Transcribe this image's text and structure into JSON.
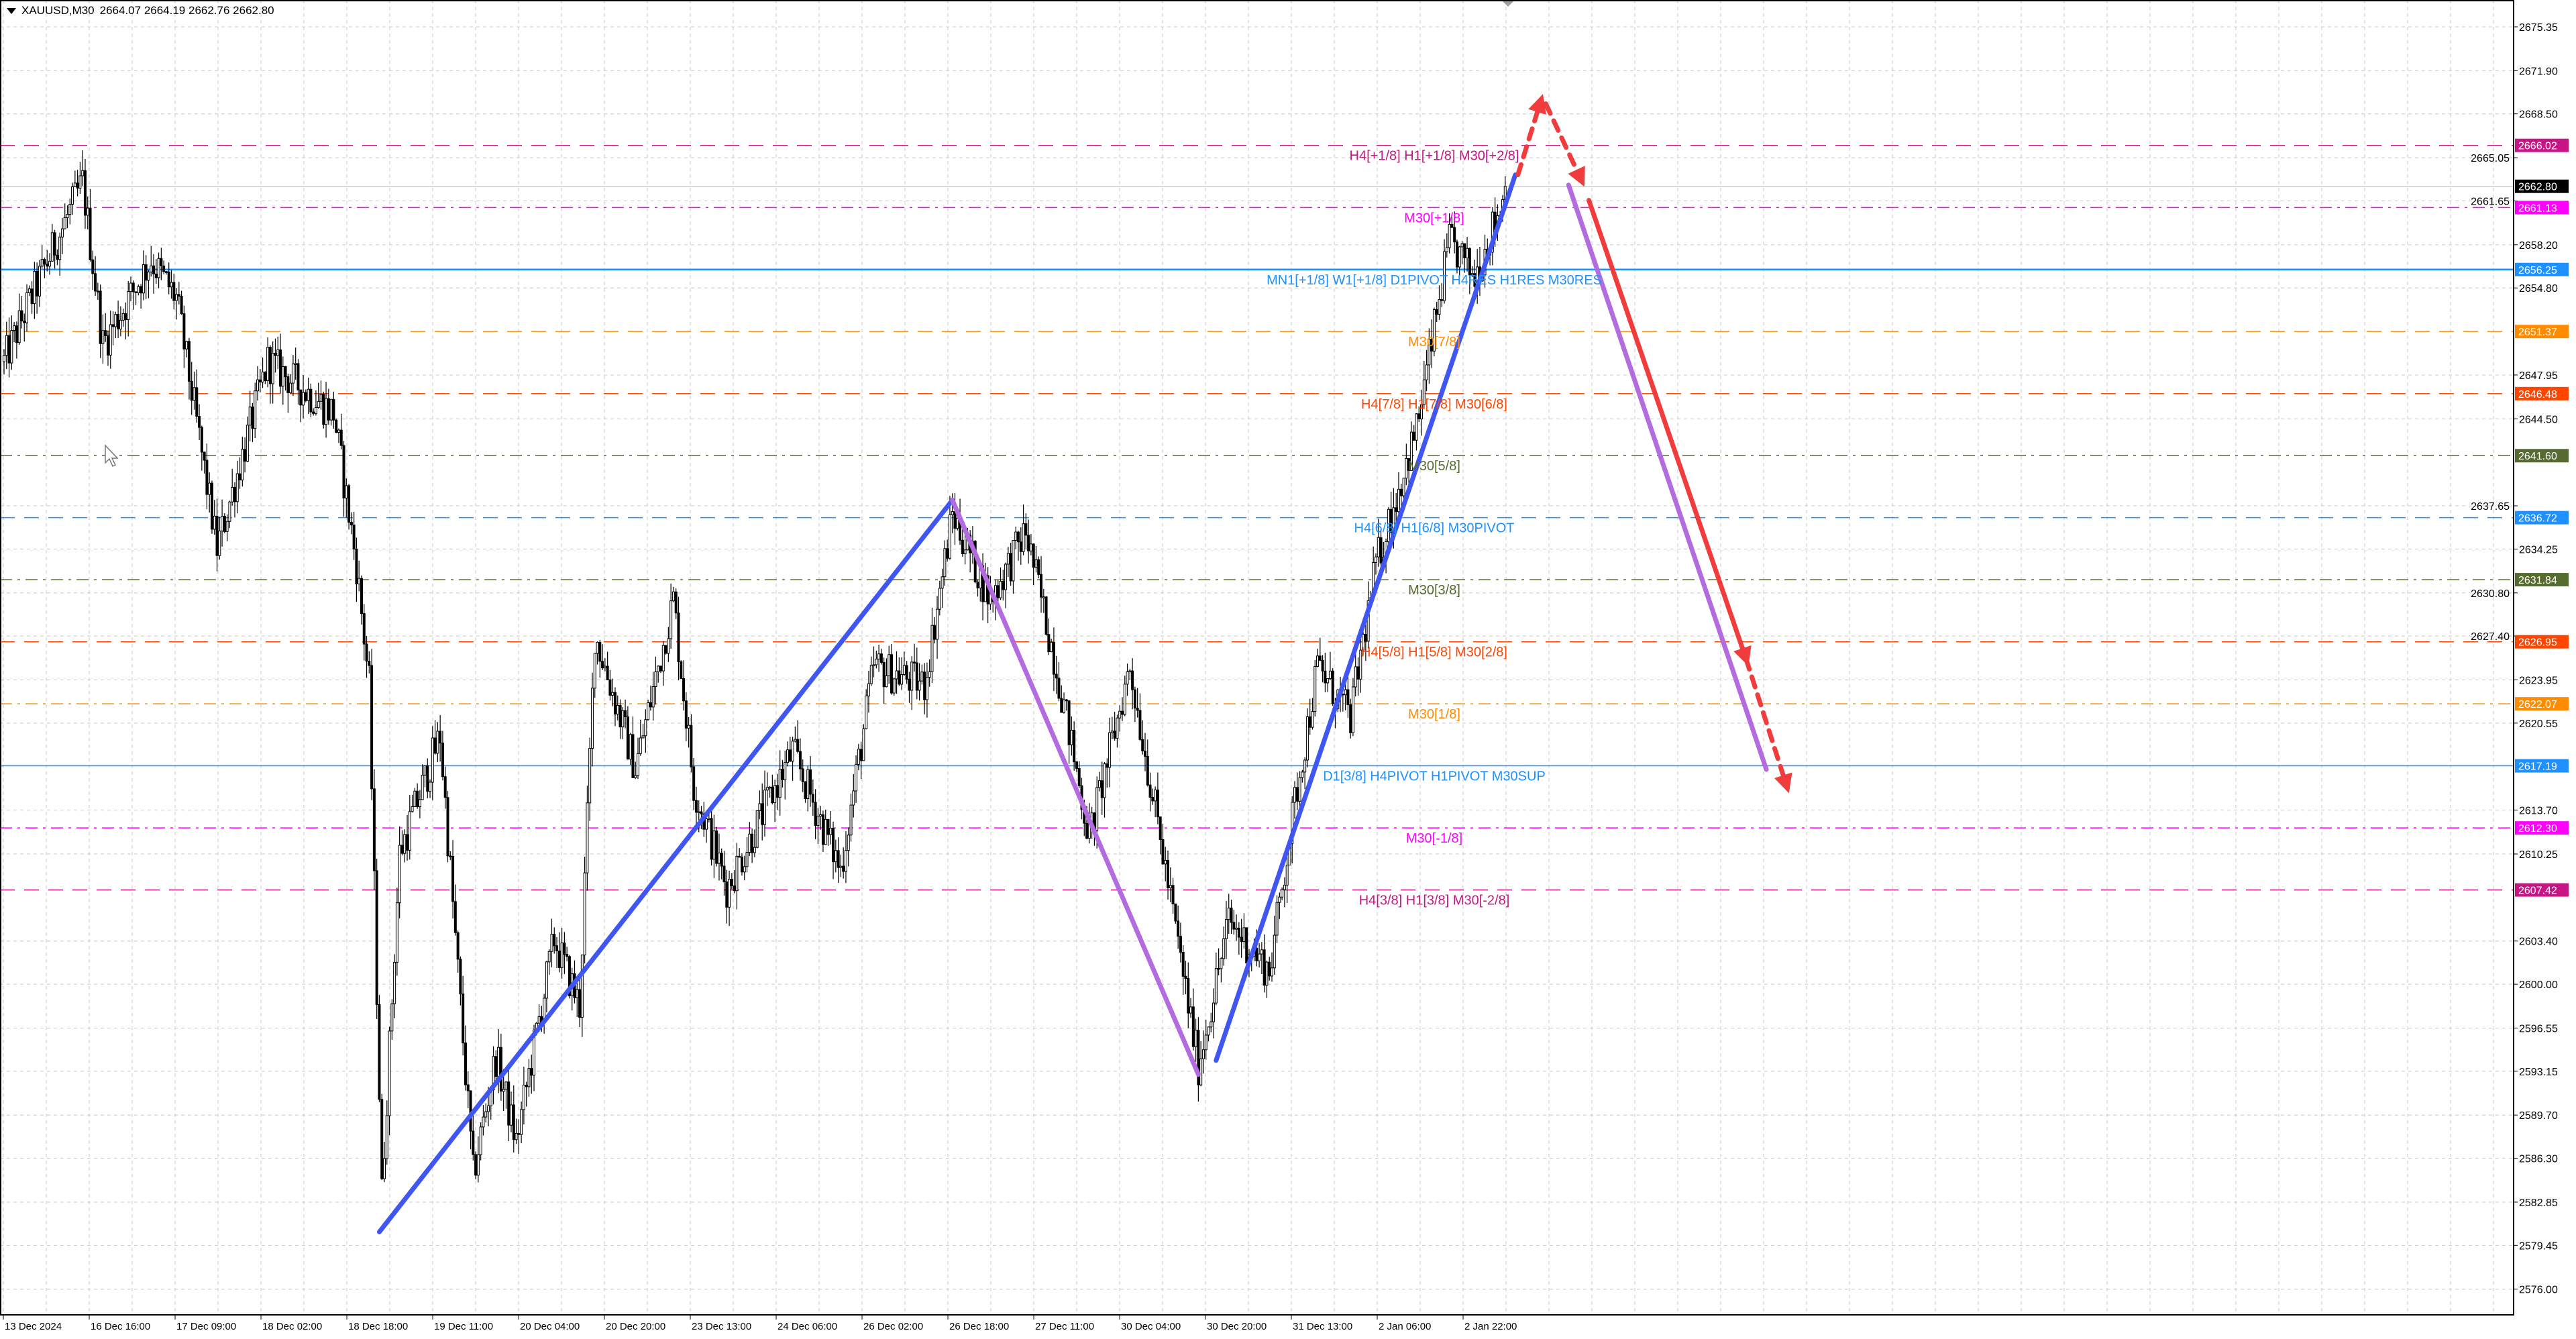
{
  "header": {
    "symbol": "XAUUSD,M30",
    "ohlc": "2664.07 2664.19 2662.76 2662.80"
  },
  "chart_data": {
    "type": "candlestick",
    "symbol": "XAUUSD",
    "timeframe": "M30",
    "last_bar": {
      "open": 2664.07,
      "high": 2664.19,
      "low": 2662.76,
      "close": 2662.8
    },
    "ylim": [
      2574.03,
      2677.46
    ],
    "grid": true,
    "y_ticks": [
      "2675.35",
      "2671.90",
      "2668.50",
      "2665.05",
      "2661.65",
      "2658.20",
      "2654.80",
      "2647.95",
      "2644.50",
      "2637.65",
      "2634.25",
      "2630.80",
      "2627.40",
      "2623.95",
      "2620.55",
      "2613.70",
      "2610.25",
      "2603.40",
      "2600.00",
      "2596.55",
      "2593.15",
      "2589.70",
      "2586.30",
      "2582.85",
      "2579.45",
      "2576.00"
    ],
    "x_ticks": [
      "13 Dec 2024",
      "16 Dec 16:00",
      "17 Dec 09:00",
      "18 Dec 02:00",
      "18 Dec 18:00",
      "19 Dec 11:00",
      "20 Dec 04:00",
      "20 Dec 20:00",
      "23 Dec 13:00",
      "24 Dec 06:00",
      "26 Dec 02:00",
      "26 Dec 18:00",
      "27 Dec 11:00",
      "30 Dec 04:00",
      "30 Dec 20:00",
      "31 Dec 13:00",
      "2 Jan 06:00",
      "2 Jan 22:00"
    ],
    "price_path_bar_price": [
      [
        0,
        2649.0
      ],
      [
        10,
        2653.7
      ],
      [
        31,
        2663.1
      ],
      [
        39,
        2650.4
      ],
      [
        58,
        2657.0
      ],
      [
        68,
        2654.0
      ],
      [
        84,
        2634.3
      ],
      [
        104,
        2649.0
      ],
      [
        130,
        2645.0
      ],
      [
        139,
        2633.0
      ],
      [
        144,
        2623.6
      ],
      [
        149,
        2583.6
      ],
      [
        156,
        2610.3
      ],
      [
        172,
        2619.6
      ],
      [
        185,
        2585.0
      ],
      [
        194,
        2594.3
      ],
      [
        202,
        2587.6
      ],
      [
        217,
        2603.6
      ],
      [
        227,
        2598.3
      ],
      [
        233,
        2627.6
      ],
      [
        249,
        2617.0
      ],
      [
        264,
        2630.3
      ],
      [
        272,
        2615.6
      ],
      [
        285,
        2607.6
      ],
      [
        311,
        2618.3
      ],
      [
        330,
        2609.0
      ],
      [
        343,
        2625.0
      ],
      [
        363,
        2623.6
      ],
      [
        374,
        2637.0
      ],
      [
        389,
        2630.3
      ],
      [
        403,
        2635.6
      ],
      [
        415,
        2625.0
      ],
      [
        428,
        2611.6
      ],
      [
        444,
        2625.0
      ],
      [
        457,
        2610.3
      ],
      [
        471,
        2593.6
      ],
      [
        483,
        2605.0
      ],
      [
        499,
        2601.0
      ],
      [
        509,
        2614.3
      ],
      [
        518,
        2625.0
      ],
      [
        531,
        2621.0
      ],
      [
        541,
        2633.0
      ],
      [
        557,
        2643.7
      ],
      [
        570,
        2658.4
      ],
      [
        580,
        2655.7
      ],
      [
        593,
        2662.8
      ]
    ],
    "current_price": {
      "value": "2662.80",
      "color": "#000000"
    },
    "levels": [
      {
        "price": 2666.02,
        "value": "2666.02",
        "label": "H4[+1/8] H1[+1/8] M30[+2/8]",
        "color": "#c71585",
        "style": "dash"
      },
      {
        "price": 2661.13,
        "value": "2661.13",
        "label": "M30[+1/8]",
        "color": "#ff00ff",
        "style": "dashdot"
      },
      {
        "price": 2656.25,
        "value": "2656.25",
        "label": "MN1[+1/8] W1[+1/8] D1PIVOT H4RES H1RES M30RES",
        "color": "#1e90ff",
        "style": "solid"
      },
      {
        "price": 2651.37,
        "value": "2651.37",
        "label": "M30[7/8]",
        "color": "#ff8c00",
        "style": "dash"
      },
      {
        "price": 2646.48,
        "value": "2646.48",
        "label": "H4[7/8] H1[7/8] M30[6/8]",
        "color": "#ff4500",
        "style": "dash"
      },
      {
        "price": 2641.6,
        "value": "2641.60",
        "label": "M30[5/8]",
        "color": "#556b2f",
        "style": "dashdot"
      },
      {
        "price": 2636.72,
        "value": "2636.72",
        "label": "H4[6/8] H1[6/8] M30PIVOT",
        "color": "#1e90ff",
        "style": "dash"
      },
      {
        "price": 2631.84,
        "value": "2631.84",
        "label": "M30[3/8]",
        "color": "#556b2f",
        "style": "dashdot"
      },
      {
        "price": 2626.95,
        "value": "2626.95",
        "label": "H4[5/8] H1[5/8] M30[2/8]",
        "color": "#ff4500",
        "style": "dash"
      },
      {
        "price": 2622.07,
        "value": "2622.07",
        "label": "M30[1/8]",
        "color": "#ff8c00",
        "style": "dashdot"
      },
      {
        "price": 2617.19,
        "value": "2617.19",
        "label": "D1[3/8] H4PIVOT H1PIVOT M30SUP",
        "color": "#1e90ff",
        "style": "thin"
      },
      {
        "price": 2612.3,
        "value": "2612.30",
        "label": "M30[-1/8]",
        "color": "#ff00ff",
        "style": "dashdot"
      },
      {
        "price": 2607.42,
        "value": "2607.42",
        "label": "H4[3/8] H1[3/8] M30[-2/8]",
        "color": "#c71585",
        "style": "dash"
      }
    ],
    "drawings": [
      {
        "name": "trendline-up-1",
        "from": [
          148,
          2580.5
        ],
        "to": [
          374,
          2638.1
        ],
        "color": "#3f56f2",
        "style": "solid"
      },
      {
        "name": "trendline-down",
        "from": [
          374,
          2638.1
        ],
        "to": [
          471,
          2592.9
        ],
        "color": "#b36be0",
        "style": "solid"
      },
      {
        "name": "trendline-up-2",
        "from": [
          478,
          2594.0
        ],
        "to": [
          596,
          2663.7
        ],
        "color": "#3f56f2",
        "style": "solid"
      },
      {
        "name": "projection-up-arrow",
        "from": [
          597,
          2663.7
        ],
        "to": [
          606,
          2669.5
        ],
        "color": "#f03c3c",
        "style": "dashed-arrow"
      },
      {
        "name": "projection-turn-arrow",
        "from": [
          608,
          2669.3
        ],
        "to": [
          622,
          2663.3
        ],
        "color": "#f03c3c",
        "style": "dashed-arrow"
      },
      {
        "name": "projection-purple",
        "from": [
          617,
          2662.9
        ],
        "to": [
          695,
          2616.9
        ],
        "color": "#b36be0",
        "style": "solid"
      },
      {
        "name": "projection-red",
        "from": [
          625,
          2661.7
        ],
        "to": [
          687,
          2625.6
        ],
        "color": "#f03c3c",
        "style": "solid-arrow"
      },
      {
        "name": "projection-red-extension",
        "from": [
          687,
          2625.6
        ],
        "to": [
          703,
          2615.6
        ],
        "color": "#f03c3c",
        "style": "dashed-arrow"
      }
    ]
  }
}
